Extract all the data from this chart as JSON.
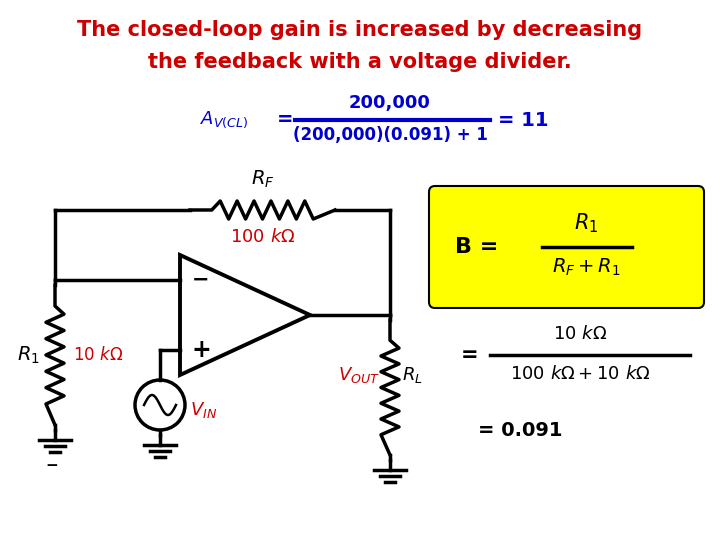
{
  "title_line1": "The closed-loop gain is increased by decreasing",
  "title_line2": "the feedback with a voltage divider.",
  "title_color": "#cc0000",
  "bg_color": "#ffffff",
  "formula_color": "#0000cc",
  "red_color": "#cc0000",
  "black_color": "#000000",
  "yellow_box_color": "#ffff00",
  "fig_width": 7.2,
  "fig_height": 5.4,
  "dpi": 100
}
